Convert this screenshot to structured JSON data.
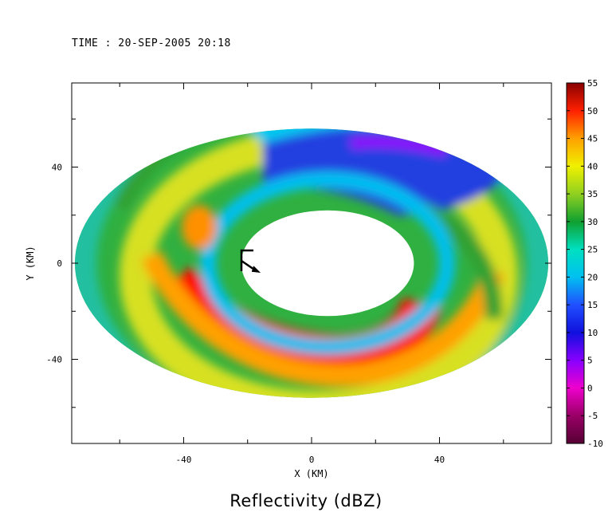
{
  "time_label": "TIME : 20-SEP-2005 20:18",
  "chart_data": {
    "type": "heatmap",
    "title": "Reflectivity (dBZ)",
    "xlabel": "X (KM)",
    "ylabel": "Y (KM)",
    "xlim": [
      -75,
      75
    ],
    "ylim": [
      -75,
      75
    ],
    "x_ticks": [
      -40,
      0,
      40
    ],
    "y_ticks": [
      -40,
      0,
      40
    ],
    "grid": false,
    "colorbar": {
      "label": "dBZ",
      "vmin": -10,
      "vmax": 55,
      "ticks": [
        55,
        50,
        45,
        40,
        35,
        30,
        25,
        20,
        15,
        10,
        5,
        0,
        -5,
        -10
      ],
      "stops": [
        {
          "v": -10,
          "color": "#550033"
        },
        {
          "v": -5,
          "color": "#990066"
        },
        {
          "v": 0,
          "color": "#ee00cc"
        },
        {
          "v": 5,
          "color": "#8800ff"
        },
        {
          "v": 10,
          "color": "#1010dd"
        },
        {
          "v": 15,
          "color": "#2050ff"
        },
        {
          "v": 20,
          "color": "#00c0f0"
        },
        {
          "v": 25,
          "color": "#00e0c0"
        },
        {
          "v": 30,
          "color": "#10a030"
        },
        {
          "v": 35,
          "color": "#90d020"
        },
        {
          "v": 40,
          "color": "#f0f000"
        },
        {
          "v": 45,
          "color": "#ffa000"
        },
        {
          "v": 50,
          "color": "#ff2000"
        },
        {
          "v": 55,
          "color": "#880000"
        }
      ]
    },
    "radar_domain": {
      "center_x": 0,
      "center_y": 0,
      "radius_x": 74,
      "radius_y": 56
    },
    "eye": {
      "center_x": 5,
      "center_y": 0,
      "radius_x": 27,
      "radius_y": 22
    },
    "storm_symbol": {
      "x": -20,
      "y": 0
    }
  }
}
